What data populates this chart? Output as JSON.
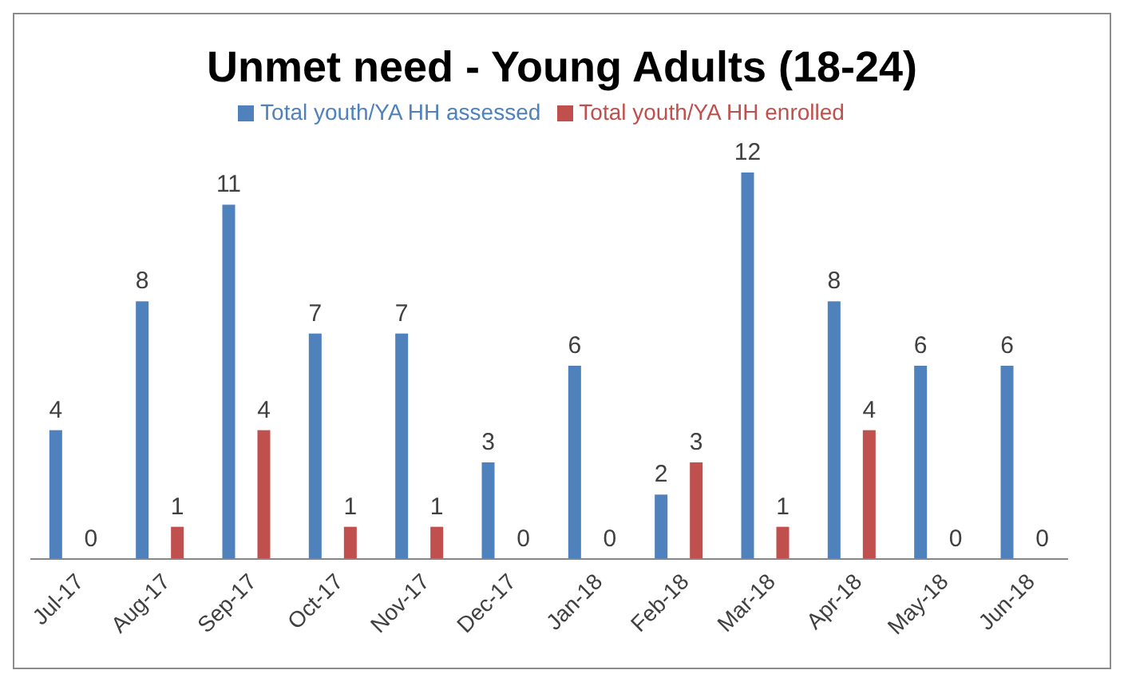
{
  "chart_data": {
    "type": "bar",
    "title": "Unmet need - Young Adults (18-24)",
    "categories": [
      "Jul-17",
      "Aug-17",
      "Sep-17",
      "Oct-17",
      "Nov-17",
      "Dec-17",
      "Jan-18",
      "Feb-18",
      "Mar-18",
      "Apr-18",
      "May-18",
      "Jun-18"
    ],
    "series": [
      {
        "name": "Total youth/YA HH assessed",
        "color": "#4f81bd",
        "values": [
          4,
          8,
          11,
          7,
          7,
          3,
          6,
          2,
          12,
          8,
          6,
          6
        ]
      },
      {
        "name": "Total youth/YA HH enrolled",
        "color": "#c0504d",
        "values": [
          0,
          1,
          4,
          1,
          1,
          0,
          0,
          3,
          1,
          4,
          0,
          0
        ]
      }
    ],
    "data_labels": true,
    "legend": "top",
    "grid": false
  }
}
